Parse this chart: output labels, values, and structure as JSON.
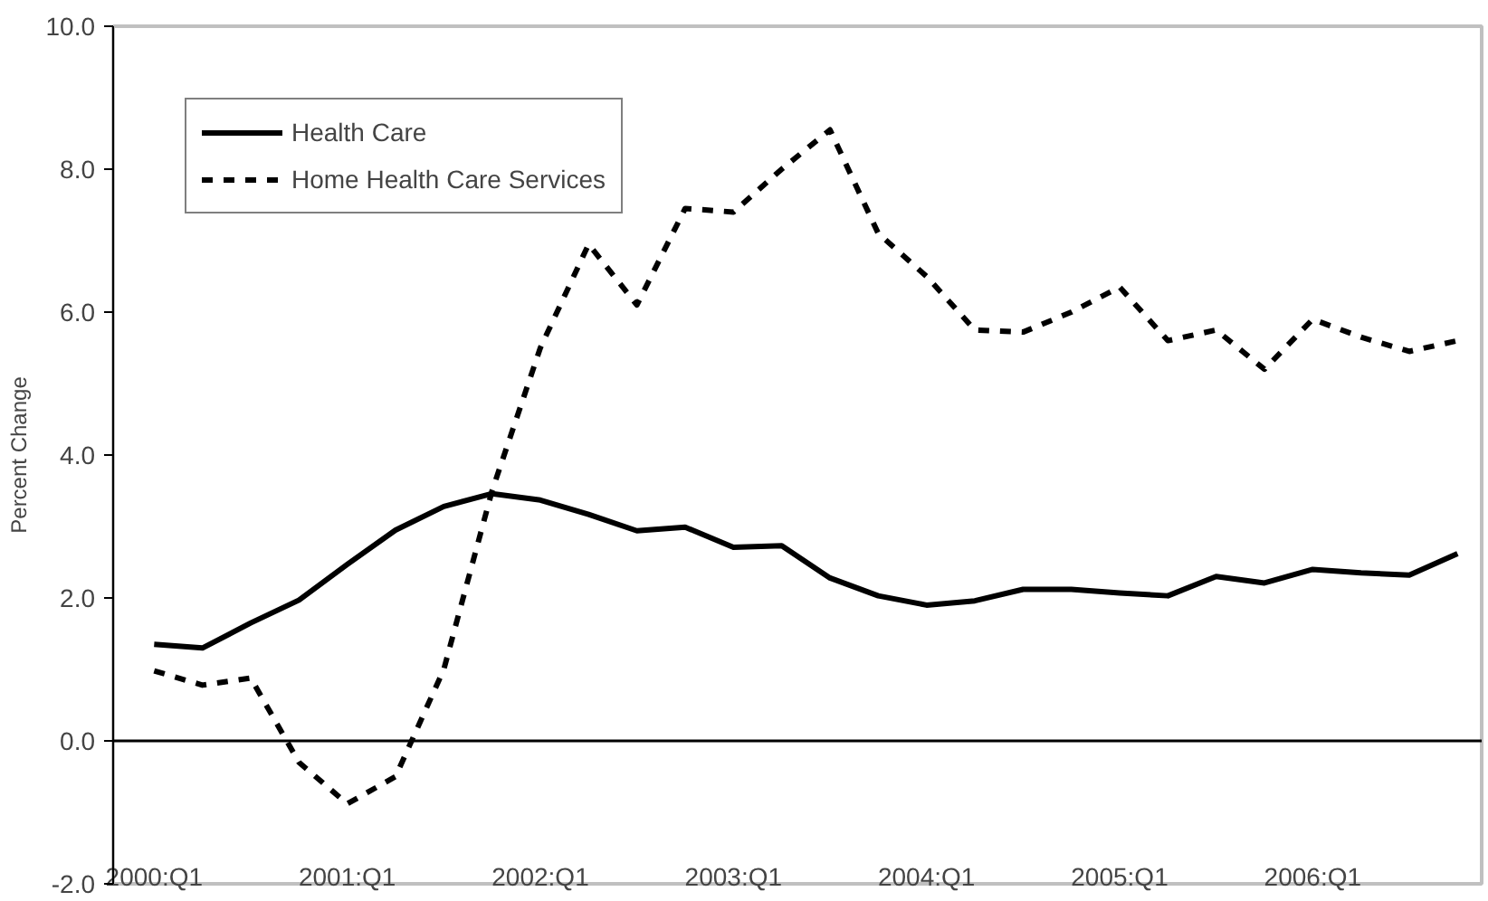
{
  "chart_data": {
    "type": "line",
    "ylabel": "Percent Change",
    "categories": [
      "2000:Q1",
      null,
      null,
      null,
      "2001:Q1",
      null,
      null,
      null,
      "2002:Q1",
      null,
      null,
      null,
      "2003:Q1",
      null,
      null,
      null,
      "2004:Q1",
      null,
      null,
      null,
      "2005:Q1",
      null,
      null,
      null,
      "2006:Q1",
      null,
      null,
      null
    ],
    "series": [
      {
        "name": "Health Care",
        "color": "#000000",
        "line_style": "solid",
        "values": [
          1.35,
          1.3,
          1.65,
          1.97,
          2.47,
          2.95,
          3.28,
          3.46,
          3.37,
          3.17,
          2.94,
          2.99,
          2.71,
          2.73,
          2.28,
          2.03,
          1.9,
          1.96,
          2.12,
          2.12,
          2.07,
          2.03,
          2.3,
          2.21,
          2.4,
          2.35,
          2.32,
          2.62
        ]
      },
      {
        "name": "Home Health Care Services",
        "color": "#000000",
        "line_style": "dashed",
        "values": [
          0.98,
          0.78,
          0.88,
          -0.3,
          -0.88,
          -0.5,
          1.0,
          3.5,
          5.5,
          6.95,
          6.1,
          7.45,
          7.4,
          8.0,
          8.55,
          7.1,
          6.5,
          5.75,
          5.72,
          6.0,
          6.35,
          5.6,
          5.75,
          5.2,
          5.9,
          5.65,
          5.45,
          5.6
        ]
      }
    ],
    "ylim": [
      -2,
      10
    ],
    "yticks": [
      {
        "value": -2,
        "label": "-2.0"
      },
      {
        "value": 0,
        "label": "0.0"
      },
      {
        "value": 2,
        "label": "2.0"
      },
      {
        "value": 4,
        "label": "4.0"
      },
      {
        "value": 6,
        "label": "6.0"
      },
      {
        "value": 8,
        "label": "8.0"
      },
      {
        "value": 10,
        "label": "10.0"
      }
    ],
    "ref_lines": [
      {
        "axis": "y",
        "value": 0,
        "color": "#000000"
      }
    ],
    "grid": false,
    "legend": "top left",
    "marker": "none"
  }
}
